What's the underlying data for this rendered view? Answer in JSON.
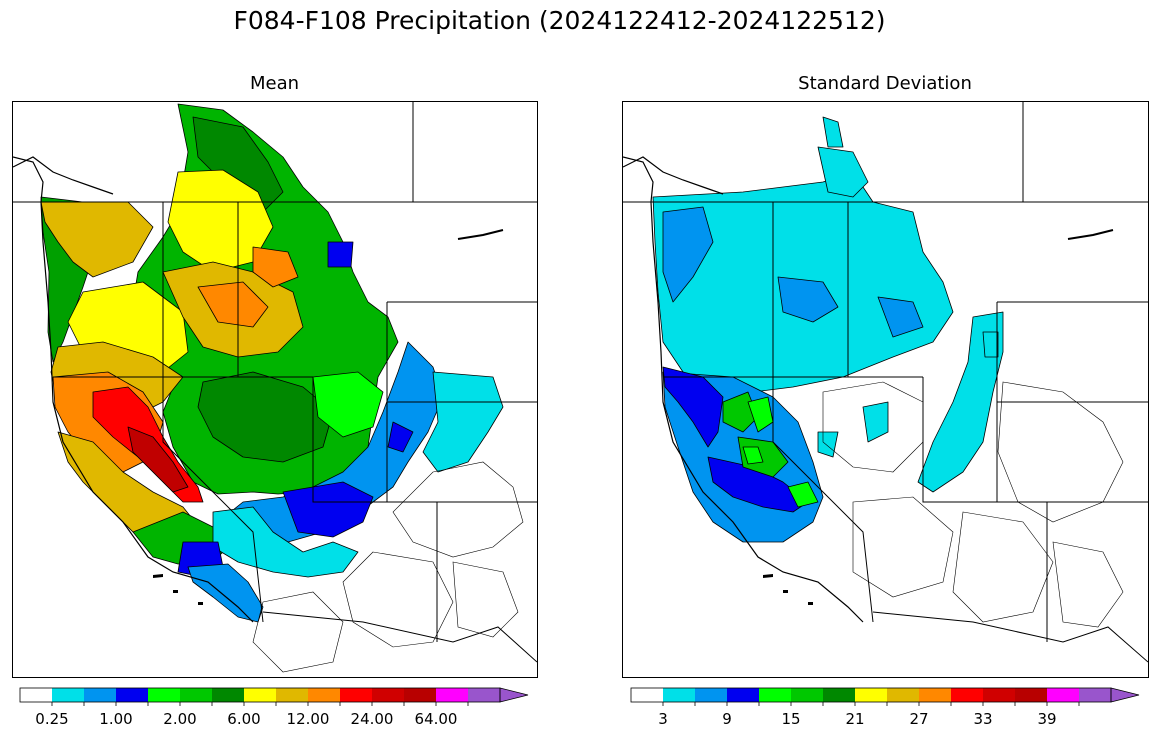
{
  "suptitle": "F084-F108 Precipitation (2024122412-2024122512)",
  "panels": [
    {
      "title": "Mean",
      "colorbar": {
        "colors": [
          "#ffffff",
          "#00e0e8",
          "#0094f0",
          "#0000f0",
          "#00ff00",
          "#00c800",
          "#008800",
          "#ffff00",
          "#e0b800",
          "#ff8800",
          "#ff0000",
          "#d00000",
          "#b80000",
          "#ff00ff",
          "#9955cc"
        ],
        "extend": "max",
        "tick_labels": [
          "0.25",
          "1.00",
          "2.00",
          "6.00",
          "12.00",
          "24.00",
          "64.00"
        ]
      }
    },
    {
      "title": "Standard Deviation",
      "colorbar": {
        "colors": [
          "#ffffff",
          "#00e0e8",
          "#0094f0",
          "#0000f0",
          "#00ff00",
          "#00c800",
          "#008800",
          "#ffff00",
          "#e0b800",
          "#ff8800",
          "#ff0000",
          "#d00000",
          "#b80000",
          "#ff00ff",
          "#9955cc"
        ],
        "extend": "max",
        "tick_labels": [
          "3",
          "9",
          "15",
          "21",
          "27",
          "33",
          "39"
        ]
      }
    }
  ]
}
